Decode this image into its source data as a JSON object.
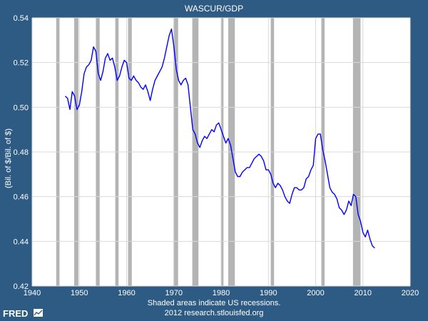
{
  "chart_data": {
    "type": "line",
    "title": "WASCUR/GDP",
    "ylabel": "(Bil. of $/Bil. of $)",
    "xlabel": "",
    "xlim": [
      1940,
      2020
    ],
    "ylim": [
      0.42,
      0.54
    ],
    "x_ticks": [
      "1940",
      "1950",
      "1960",
      "1970",
      "1980",
      "1990",
      "2000",
      "2010",
      "2020"
    ],
    "y_ticks": [
      "0.42",
      "0.44",
      "0.46",
      "0.48",
      "0.50",
      "0.52",
      "0.54"
    ],
    "grid": true,
    "line_color": "#0000ff",
    "recession_color": "#b4b4b4",
    "recessions": [
      [
        1945.1,
        1945.8
      ],
      [
        1948.9,
        1949.8
      ],
      [
        1953.5,
        1954.3
      ],
      [
        1957.6,
        1958.3
      ],
      [
        1960.3,
        1961.1
      ],
      [
        1969.9,
        1970.9
      ],
      [
        1973.9,
        1975.2
      ],
      [
        1980.0,
        1980.5
      ],
      [
        1981.5,
        1982.9
      ],
      [
        1990.5,
        1991.2
      ],
      [
        2001.2,
        2001.9
      ],
      [
        2007.9,
        2009.5
      ]
    ],
    "series": [
      {
        "x": [
          1947.0,
          1947.5,
          1948.0,
          1948.5,
          1949.0,
          1949.5,
          1950.0,
          1950.5,
          1951.0,
          1951.5,
          1952.0,
          1952.5,
          1953.0,
          1953.5,
          1954.0,
          1954.5,
          1955.0,
          1955.5,
          1956.0,
          1956.5,
          1957.0,
          1957.5,
          1958.0,
          1958.5,
          1959.0,
          1959.5,
          1960.0,
          1960.5,
          1961.0,
          1961.5,
          1962.0,
          1962.5,
          1963.0,
          1963.5,
          1964.0,
          1964.5,
          1965.0,
          1965.5,
          1966.0,
          1966.5,
          1967.0,
          1967.5,
          1968.0,
          1968.5,
          1969.0,
          1969.5,
          1970.0,
          1970.5,
          1971.0,
          1971.5,
          1972.0,
          1972.5,
          1973.0,
          1973.5,
          1974.0,
          1974.5,
          1975.0,
          1975.5,
          1976.0,
          1976.5,
          1977.0,
          1977.5,
          1978.0,
          1978.5,
          1979.0,
          1979.5,
          1980.0,
          1980.5,
          1981.0,
          1981.5,
          1982.0,
          1982.5,
          1983.0,
          1983.5,
          1984.0,
          1984.5,
          1985.0,
          1985.5,
          1986.0,
          1986.5,
          1987.0,
          1987.5,
          1988.0,
          1988.5,
          1989.0,
          1989.5,
          1990.0,
          1990.5,
          1991.0,
          1991.5,
          1992.0,
          1992.5,
          1993.0,
          1993.5,
          1994.0,
          1994.5,
          1995.0,
          1995.5,
          1996.0,
          1996.5,
          1997.0,
          1997.5,
          1998.0,
          1998.5,
          1999.0,
          1999.5,
          2000.0,
          2000.5,
          2001.0,
          2001.5,
          2002.0,
          2002.5,
          2003.0,
          2003.5,
          2004.0,
          2004.5,
          2005.0,
          2005.5,
          2006.0,
          2006.5,
          2007.0,
          2007.5,
          2008.0,
          2008.5,
          2009.0,
          2009.5,
          2010.0,
          2010.5,
          2011.0,
          2011.5,
          2012.0,
          2012.5
        ],
        "y": [
          0.505,
          0.504,
          0.499,
          0.507,
          0.505,
          0.499,
          0.501,
          0.507,
          0.515,
          0.518,
          0.519,
          0.521,
          0.527,
          0.525,
          0.515,
          0.512,
          0.516,
          0.522,
          0.524,
          0.521,
          0.522,
          0.518,
          0.512,
          0.514,
          0.518,
          0.521,
          0.52,
          0.513,
          0.512,
          0.514,
          0.512,
          0.511,
          0.509,
          0.508,
          0.51,
          0.507,
          0.503,
          0.508,
          0.512,
          0.514,
          0.516,
          0.518,
          0.522,
          0.527,
          0.532,
          0.535,
          0.527,
          0.517,
          0.512,
          0.51,
          0.512,
          0.513,
          0.51,
          0.5,
          0.49,
          0.488,
          0.484,
          0.482,
          0.485,
          0.487,
          0.486,
          0.488,
          0.49,
          0.489,
          0.492,
          0.493,
          0.49,
          0.487,
          0.484,
          0.486,
          0.483,
          0.477,
          0.471,
          0.469,
          0.469,
          0.471,
          0.472,
          0.473,
          0.473,
          0.475,
          0.477,
          0.478,
          0.479,
          0.478,
          0.476,
          0.472,
          0.472,
          0.47,
          0.466,
          0.464,
          0.466,
          0.465,
          0.463,
          0.46,
          0.458,
          0.457,
          0.461,
          0.464,
          0.464,
          0.463,
          0.463,
          0.464,
          0.468,
          0.469,
          0.472,
          0.474,
          0.486,
          0.488,
          0.488,
          0.481,
          0.476,
          0.47,
          0.464,
          0.462,
          0.461,
          0.459,
          0.455,
          0.454,
          0.452,
          0.454,
          0.458,
          0.456,
          0.461,
          0.46,
          0.452,
          0.449,
          0.444,
          0.442,
          0.445,
          0.441,
          0.438,
          0.437
        ]
      }
    ]
  },
  "footer": {
    "note_line1": "Shaded areas indicate US recessions.",
    "note_line2": "2012 research.stlouisfed.org"
  },
  "logo": {
    "text": "FRED",
    "icon": "fred-chart-icon"
  }
}
